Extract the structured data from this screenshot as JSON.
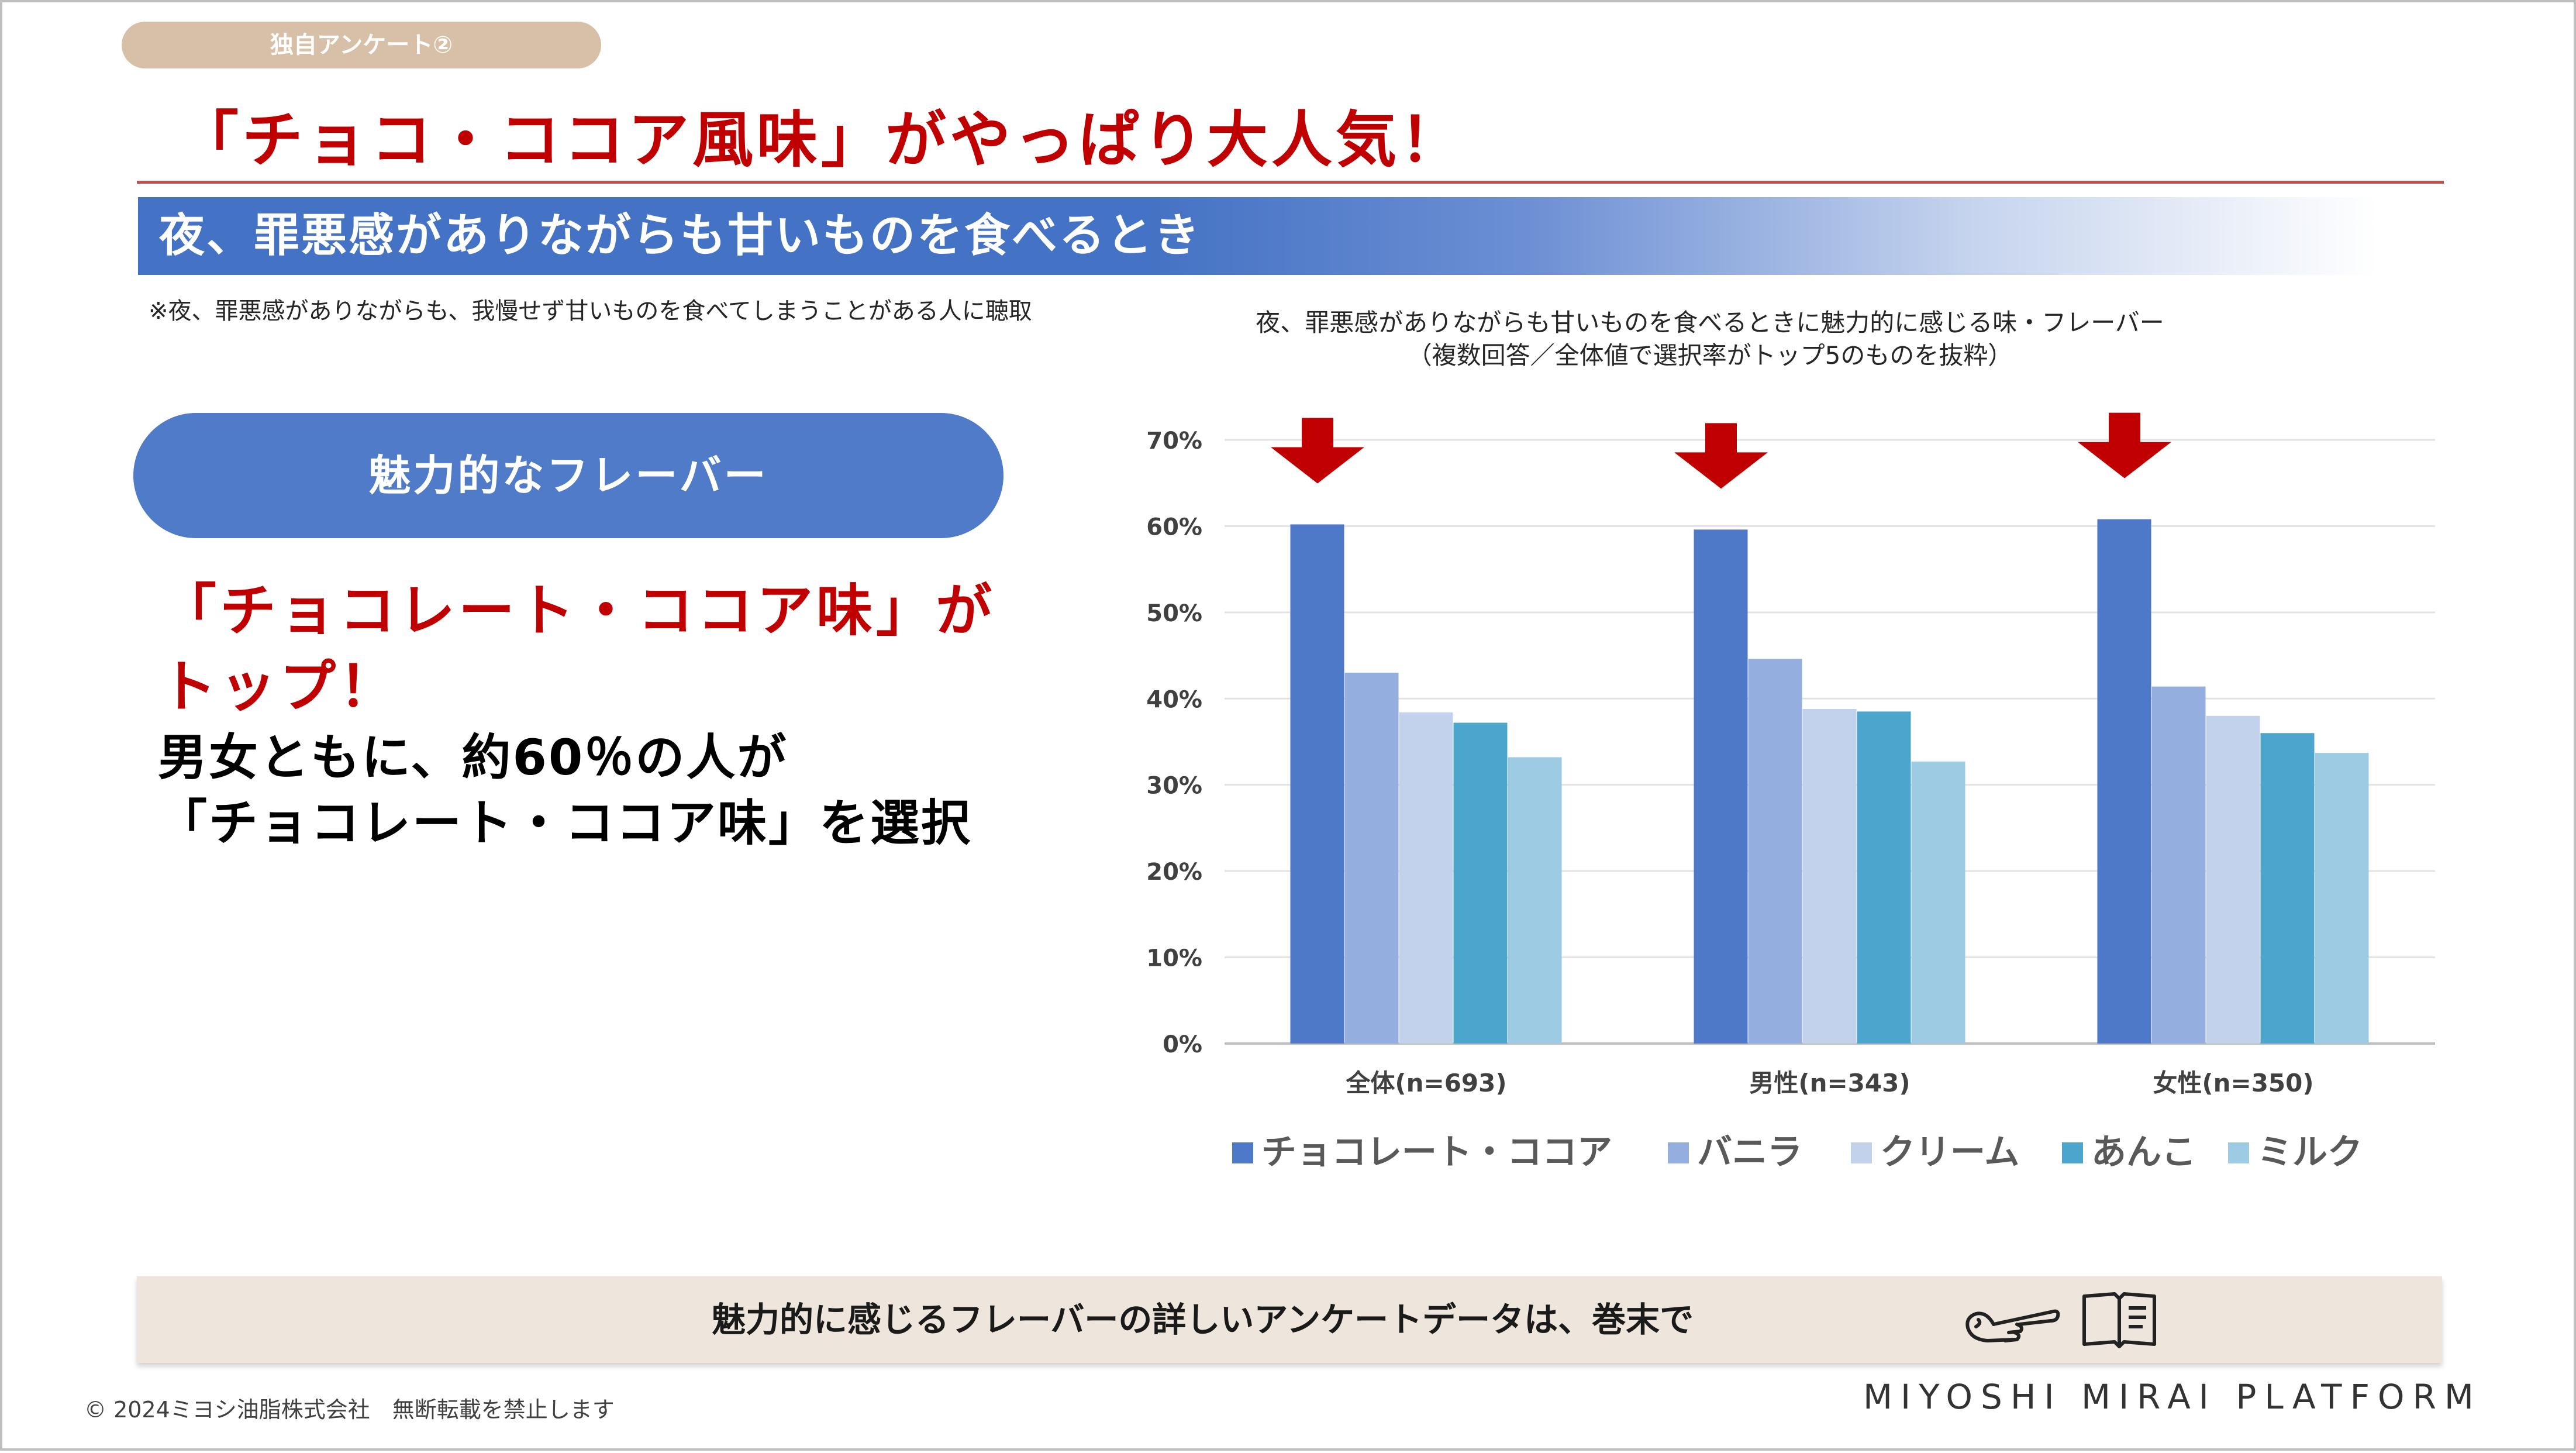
{
  "tag": {
    "label": "独自アンケート②"
  },
  "headline": "「チョコ・ココア風味」がやっぱり大人気！",
  "subheader": "夜、罪悪感がありながらも甘いものを食べるとき",
  "note": "※夜、罪悪感がありながらも、我慢せず甘いものを食べてしまうことがある人に聴取",
  "left": {
    "pill_label": "魅力的なフレーバー",
    "claim_red_line1": "「チョコレート・ココア味」が",
    "claim_red_line2": "トップ！",
    "claim_black_line1": "男女ともに、約60％の人が",
    "claim_black_line2": "「チョコレート・ココア味」を選択"
  },
  "colors": {
    "accent_red": "#c00000",
    "subheader_blue": "#4472c4",
    "arrow_red": "#c00000"
  },
  "chart_data": {
    "type": "bar",
    "title_line1": "夜、罪悪感がありながらも甘いものを食べるときに魅力的に感じる味・フレーバー",
    "title_line2": "（複数回答／全体値で選択率がトップ5のものを抜粋）",
    "categories": [
      "全体(n=693)",
      "男性(n=343)",
      "女性(n=350)"
    ],
    "series": [
      {
        "name": "チョコレート・ココア",
        "color": "#4e79c8",
        "values": [
          60.2,
          59.6,
          60.8
        ]
      },
      {
        "name": "バニラ",
        "color": "#95aee0",
        "values": [
          43.0,
          44.6,
          41.4
        ]
      },
      {
        "name": "クリーム",
        "color": "#c3d2ec",
        "values": [
          38.4,
          38.8,
          38.0
        ]
      },
      {
        "name": "あんこ",
        "color": "#4ba5cc",
        "values": [
          37.2,
          38.5,
          36.0
        ]
      },
      {
        "name": "ミルク",
        "color": "#9ccbe3",
        "values": [
          33.2,
          32.7,
          33.7
        ]
      }
    ],
    "ylim": [
      0,
      70
    ],
    "yticks": [
      "0%",
      "10%",
      "20%",
      "30%",
      "40%",
      "50%",
      "60%",
      "70%"
    ],
    "grid": true,
    "legend_position": "bottom",
    "highlight_arrows": "above top series in every category"
  },
  "bottom_bar": {
    "text": "魅力的に感じるフレーバーの詳しいアンケートデータは、巻末で",
    "icons": [
      "pointing-hand-icon",
      "open-book-icon"
    ]
  },
  "footer": {
    "copyright": "© 2024ミヨシ油脂株式会社　無断転載を禁止します",
    "brand": "MIYOSHI MIRAI PLATFORM"
  }
}
